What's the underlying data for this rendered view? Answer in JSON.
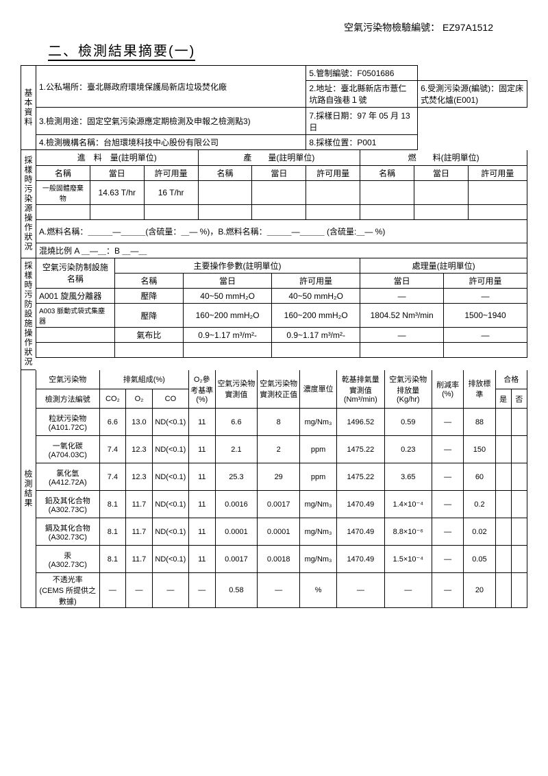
{
  "header": {
    "doc_id_label": "空氣污染物檢驗編號：",
    "doc_id": "EZ97A1512",
    "title": "二、檢測結果摘要(一)"
  },
  "basic": {
    "side": "基本資料",
    "r1": "1.公私場所：臺北縣政府環境保護局新店垃圾焚化廠",
    "r2": "2.地址：臺北縣新店市薏仁坑路自強巷１號",
    "r3": "3.檢測用途：固定空氣污染源應定期檢測及申報之檢測點3)",
    "r4": "4.檢測機構名稱：台旭環境科技中心股份有限公司",
    "r5": "5.管制編號：F0501686",
    "r6": "6.受測污染源(編號)：固定床式焚化爐(E001)",
    "r7": "7.採樣日期：97 年 05 月 13 日",
    "r8": "8.採樣位置：P001"
  },
  "operation": {
    "side": "採樣時污染源操作狀況",
    "feed_title": "進　料　量(註明單位)",
    "prod_title": "產　　量(註明單位)",
    "fuel_title": "燃　　料(註明單位)",
    "col_name": "名稱",
    "col_day": "當日",
    "col_permit": "許可用量",
    "feed_name": "一般固體廢棄物",
    "feed_day": "14.63 T/hr",
    "feed_permit": "16 T/hr",
    "fuel_a": "A.燃料名稱：＿＿＿—＿＿＿(含硫量：＿—  %)，B.燃料名稱：＿＿＿—＿＿＿ (含硫量:＿— %)",
    "mix": "混燒比例 A ＿—＿：B ＿—＿"
  },
  "control": {
    "side": "採樣時污防設施操作狀況",
    "facility": "空氣污染防制設施名稱",
    "param_title": "主要操作參數(註明單位)",
    "treat_title": "處理量(註明單位)",
    "col_name": "名稱",
    "col_day": "當日",
    "col_permit": "許可用量",
    "row1_fac": "A001 旋風分離器",
    "row1_name": "壓降",
    "row1_day": "40~50 mmH₂O",
    "row1_permit": "40~50 mmH₂O",
    "row1_tday": "—",
    "row1_tpermit": "—",
    "row2_fac": "A003 脈動式袋式集塵器",
    "row2_name": "壓降",
    "row2_day": "160~200 mmH₂O",
    "row2_permit": "160~200 mmH₂O",
    "row2_tday": "1804.52 Nm³/min",
    "row2_tpermit": "1500~1940",
    "row3_name": "氣布比",
    "row3_day": "0.9~1.17 m³/m²-",
    "row3_permit": "0.9~1.17 m³/m²-",
    "row3_tday": "—",
    "row3_tpermit": "—"
  },
  "results": {
    "side": "檢測結果",
    "h_pollutant": "空氣污染物",
    "h_method": "檢測方法編號",
    "h_exhaust": "排氣組成(%)",
    "h_co2": "CO₂",
    "h_o2": "O₂",
    "h_co": "CO",
    "h_o2ref": "O₂參考基準(%)",
    "h_measured": "空氣污染物實測值",
    "h_corrected": "空氣污染物實測校正值",
    "h_unit": "濃度單位",
    "h_dryflow": "乾基排氣量實測值(Nm³/min)",
    "h_emission": "空氣污染物排放量(Kg/hr)",
    "h_reduction": "削減率(%)",
    "h_standard": "排放標準",
    "h_pass": "合格",
    "h_yes": "是",
    "h_no": "否",
    "rows": [
      {
        "name": "粒狀污染物",
        "method": "(A101.72C)",
        "co2": "6.6",
        "o2": "13.0",
        "co": "ND(<0.1)",
        "o2ref": "11",
        "meas": "6.6",
        "corr": "8",
        "unit": "mg/Nm₃",
        "flow": "1496.52",
        "emis": "0.59",
        "red": "—",
        "std": "88"
      },
      {
        "name": "一氧化碳",
        "method": "(A704.03C)",
        "co2": "7.4",
        "o2": "12.3",
        "co": "ND(<0.1)",
        "o2ref": "11",
        "meas": "2.1",
        "corr": "2",
        "unit": "ppm",
        "flow": "1475.22",
        "emis": "0.23",
        "red": "—",
        "std": "150"
      },
      {
        "name": "氯化氫",
        "method": "(A412.72A)",
        "co2": "7.4",
        "o2": "12.3",
        "co": "ND(<0.1)",
        "o2ref": "11",
        "meas": "25.3",
        "corr": "29",
        "unit": "ppm",
        "flow": "1475.22",
        "emis": "3.65",
        "red": "—",
        "std": "60"
      },
      {
        "name": "鉛及其化合物",
        "method": "(A302.73C)",
        "co2": "8.1",
        "o2": "11.7",
        "co": "ND(<0.1)",
        "o2ref": "11",
        "meas": "0.0016",
        "corr": "0.0017",
        "unit": "mg/Nm₃",
        "flow": "1470.49",
        "emis": "1.4×10⁻⁴",
        "red": "—",
        "std": "0.2"
      },
      {
        "name": "鎘及其化合物",
        "method": "(A302.73C)",
        "co2": "8.1",
        "o2": "11.7",
        "co": "ND(<0.1)",
        "o2ref": "11",
        "meas": "0.0001",
        "corr": "0.0001",
        "unit": "mg/Nm₃",
        "flow": "1470.49",
        "emis": "8.8×10⁻⁶",
        "red": "—",
        "std": "0.02"
      },
      {
        "name": "汞",
        "method": "(A302.73C)",
        "co2": "8.1",
        "o2": "11.7",
        "co": "ND(<0.1)",
        "o2ref": "11",
        "meas": "0.0017",
        "corr": "0.0018",
        "unit": "mg/Nm₃",
        "flow": "1470.49",
        "emis": "1.5×10⁻⁴",
        "red": "—",
        "std": "0.05"
      },
      {
        "name": "不透光率",
        "method": "(CEMS 所提供之數據)",
        "co2": "—",
        "o2": "—",
        "co": "—",
        "o2ref": "—",
        "meas": "0.58",
        "corr": "—",
        "unit": "%",
        "flow": "—",
        "emis": "—",
        "red": "—",
        "std": "20"
      }
    ]
  }
}
